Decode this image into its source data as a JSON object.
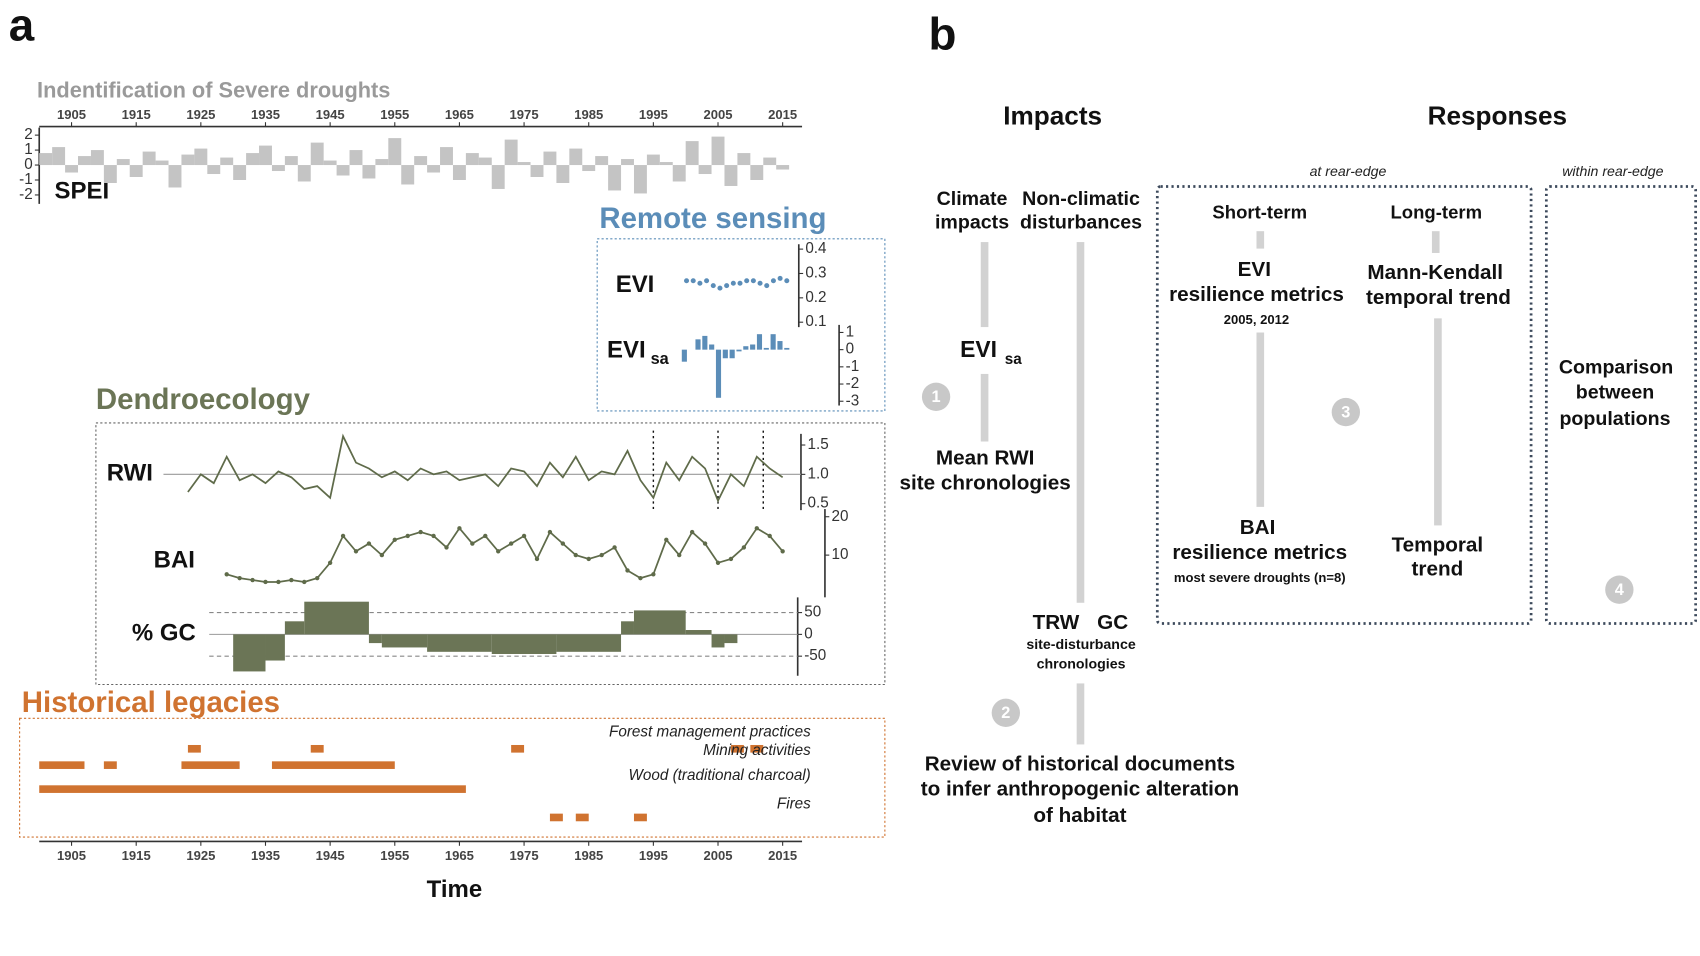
{
  "panel_labels": {
    "a": "a",
    "b": "b"
  },
  "time_axis": {
    "xlim": [
      1900,
      2018
    ],
    "xticks": [
      1905,
      1915,
      1925,
      1935,
      1945,
      1955,
      1965,
      1975,
      1985,
      1995,
      2005,
      2015
    ],
    "label": "Time"
  },
  "headings": {
    "drought": "Indentification of Severe droughts",
    "remote": "Remote sensing",
    "dendro": "Dendroecology",
    "legacies": "Historical legacies"
  },
  "chart_data": [
    {
      "type": "bar",
      "ylabel": "SPEI",
      "color": "#c4c4c4",
      "x": [
        1901,
        1903,
        1905,
        1907,
        1909,
        1911,
        1913,
        1915,
        1917,
        1919,
        1921,
        1923,
        1925,
        1927,
        1929,
        1931,
        1933,
        1935,
        1937,
        1939,
        1941,
        1943,
        1945,
        1947,
        1949,
        1951,
        1953,
        1955,
        1957,
        1959,
        1961,
        1963,
        1965,
        1967,
        1969,
        1971,
        1973,
        1975,
        1977,
        1979,
        1981,
        1983,
        1985,
        1987,
        1989,
        1991,
        1993,
        1995,
        1997,
        1999,
        2001,
        2003,
        2005,
        2007,
        2009,
        2011,
        2013,
        2015
      ],
      "values": [
        0.8,
        1.2,
        -0.5,
        0.6,
        1.0,
        -1.2,
        0.4,
        -0.8,
        0.9,
        0.3,
        -1.5,
        0.7,
        1.1,
        -0.6,
        0.5,
        -1.0,
        0.8,
        1.3,
        -0.4,
        0.6,
        -1.1,
        1.5,
        0.3,
        -0.7,
        1.0,
        -0.9,
        0.4,
        1.8,
        -1.3,
        0.6,
        -0.5,
        1.2,
        -1.0,
        0.8,
        0.5,
        -1.6,
        1.7,
        0.2,
        -0.8,
        0.9,
        -1.2,
        1.1,
        -0.4,
        0.6,
        -1.7,
        0.4,
        -1.9,
        0.7,
        0.2,
        -1.1,
        1.6,
        -0.6,
        1.9,
        -1.4,
        0.8,
        -1.0,
        0.5,
        -0.3
      ],
      "ylim": [
        -2.6,
        2.5
      ],
      "yticks": [
        2,
        1,
        0,
        -1,
        -2
      ]
    },
    {
      "type": "dots",
      "ylabel": "EVI",
      "color": "#5b8db8",
      "x": [
        2000,
        2001,
        2002,
        2003,
        2004,
        2005,
        2006,
        2007,
        2008,
        2009,
        2010,
        2011,
        2012,
        2013,
        2014,
        2015
      ],
      "values": [
        0.27,
        0.27,
        0.26,
        0.27,
        0.25,
        0.24,
        0.25,
        0.26,
        0.26,
        0.27,
        0.27,
        0.26,
        0.25,
        0.27,
        0.28,
        0.27
      ],
      "xlim": [
        2000,
        2015
      ],
      "ylim": [
        0.08,
        0.42
      ],
      "yticks": [
        0.4,
        0.3,
        0.2,
        0.1
      ]
    },
    {
      "type": "bar",
      "ylabel": "EVI",
      "ylabel_sub": "sa",
      "color": "#5b8db8",
      "x": [
        2000,
        2001,
        2002,
        2003,
        2004,
        2005,
        2006,
        2007,
        2008,
        2009,
        2010,
        2011,
        2012,
        2013,
        2014,
        2015
      ],
      "values": [
        -0.7,
        0.0,
        0.6,
        0.8,
        0.3,
        -2.8,
        -0.5,
        -0.5,
        -0.1,
        0.2,
        0.3,
        0.9,
        0.1,
        0.9,
        0.5,
        0.1
      ],
      "xlim": [
        2000,
        2015
      ],
      "ylim": [
        -3.25,
        1.44
      ],
      "yticks": [
        1,
        0,
        -1,
        -2,
        -3
      ]
    },
    {
      "type": "line",
      "ylabel": "RWI",
      "color": "#5f6b4a",
      "x": [
        1923,
        1925,
        1927,
        1929,
        1931,
        1933,
        1935,
        1937,
        1939,
        1941,
        1943,
        1945,
        1947,
        1949,
        1951,
        1953,
        1955,
        1957,
        1959,
        1961,
        1963,
        1965,
        1967,
        1969,
        1971,
        1973,
        1975,
        1977,
        1979,
        1981,
        1983,
        1985,
        1987,
        1989,
        1991,
        1993,
        1995,
        1997,
        1999,
        2001,
        2003,
        2005,
        2007,
        2009,
        2011,
        2013,
        2015
      ],
      "values": [
        0.7,
        1.0,
        0.85,
        1.3,
        0.9,
        1.0,
        0.85,
        1.05,
        0.95,
        0.75,
        0.8,
        0.6,
        1.65,
        1.2,
        1.1,
        0.95,
        1.05,
        0.9,
        1.1,
        1.0,
        1.05,
        0.9,
        0.95,
        1.0,
        0.8,
        1.1,
        1.05,
        0.8,
        1.2,
        0.95,
        1.3,
        0.9,
        1.05,
        1.0,
        1.4,
        0.9,
        0.6,
        1.2,
        0.9,
        1.3,
        1.1,
        0.55,
        1.0,
        0.8,
        1.3,
        1.1,
        0.95
      ],
      "ylim": [
        0.39,
        1.69
      ],
      "yticks": [
        1.5,
        {
          "value": 1,
          "label": "1.0"
        },
        0.5
      ],
      "reference": [
        1
      ],
      "drought_years": [
        1995,
        2005,
        2012
      ]
    },
    {
      "type": "line",
      "ylabel": "BAI",
      "color": "#5f6b4a",
      "markers": true,
      "x": [
        1929,
        1931,
        1933,
        1935,
        1937,
        1939,
        1941,
        1943,
        1945,
        1947,
        1949,
        1951,
        1953,
        1955,
        1957,
        1959,
        1961,
        1963,
        1965,
        1967,
        1969,
        1971,
        1973,
        1975,
        1977,
        1979,
        1981,
        1983,
        1985,
        1987,
        1989,
        1991,
        1993,
        1995,
        1997,
        1999,
        2001,
        2003,
        2005,
        2007,
        2009,
        2011,
        2013,
        2015
      ],
      "values": [
        5,
        4,
        3.5,
        3,
        3,
        3.5,
        3,
        4,
        8,
        15,
        11,
        13,
        10,
        14,
        15,
        16,
        15,
        12,
        17,
        13,
        15,
        11,
        13,
        15,
        9,
        16,
        13,
        10,
        9,
        10,
        12,
        6,
        4,
        5,
        14,
        10,
        16,
        13,
        8,
        9,
        12,
        17,
        15,
        11
      ],
      "ylim": [
        -1,
        22
      ],
      "yticks": [
        20,
        10
      ]
    },
    {
      "type": "histogram",
      "ylabel": "% GC",
      "color": "#6b7556",
      "bins": [
        1930,
        1935,
        1938,
        1941,
        1951,
        1953,
        1960,
        1970,
        1980,
        1990,
        1992,
        2000,
        2004,
        2006,
        2008
      ],
      "values": [
        -85,
        -60,
        30,
        75,
        -20,
        -30,
        -40,
        -45,
        -40,
        30,
        55,
        10,
        -30,
        -20
      ],
      "ylim": [
        -95,
        85
      ],
      "yticks": [
        50,
        0,
        -50
      ],
      "reference": [
        50,
        0,
        -50
      ]
    },
    {
      "type": "intervals",
      "color": "#d07330",
      "rows": [
        {
          "name": "Forest management practices",
          "intervals": [
            [
              1923,
              1925
            ],
            [
              1942,
              1944
            ],
            [
              1973,
              1975
            ],
            [
              2007,
              2009
            ],
            [
              2010,
              2012
            ]
          ]
        },
        {
          "name": "Mining activities",
          "intervals": [
            [
              1900,
              1907
            ],
            [
              1910,
              1912
            ],
            [
              1922,
              1931
            ],
            [
              1936,
              1955
            ]
          ]
        },
        {
          "name": "Wood (traditional charcoal)",
          "intervals": [
            [
              1900,
              1966
            ]
          ]
        },
        {
          "name": "Fires",
          "intervals": [
            [
              1979,
              1981
            ],
            [
              1983,
              1985
            ],
            [
              1992,
              1994
            ]
          ]
        }
      ]
    }
  ],
  "panel_b": {
    "impacts": "Impacts",
    "responses": "Responses",
    "climate": [
      "Climate",
      "impacts"
    ],
    "nonclimatic": [
      "Non-climatic",
      "disturbances"
    ],
    "mean_rwi": [
      "Mean RWI",
      "site chronologies"
    ],
    "trw": "TRW",
    "gc": "GC",
    "site_dist": [
      "site-disturbance",
      "chronologies"
    ],
    "review": [
      "Review of historical documents",
      "to infer anthropogenic alteration",
      "of habitat"
    ],
    "at_rear": "at rear-edge",
    "within_rear": "within rear-edge",
    "short_term": "Short-term",
    "long_term": "Long-term",
    "evi_res": [
      "EVI",
      "resilience metrics",
      "2005, 2012"
    ],
    "bai_res": [
      "BAI",
      "resilience metrics",
      "most severe droughts (n=8)"
    ],
    "mk": [
      "Mann-Kendall",
      "temporal trend"
    ],
    "temporal": [
      "Temporal",
      "trend"
    ],
    "comparison": [
      "Comparison",
      "between",
      "populations"
    ],
    "steps": [
      "1",
      "2",
      "3",
      "4"
    ]
  }
}
